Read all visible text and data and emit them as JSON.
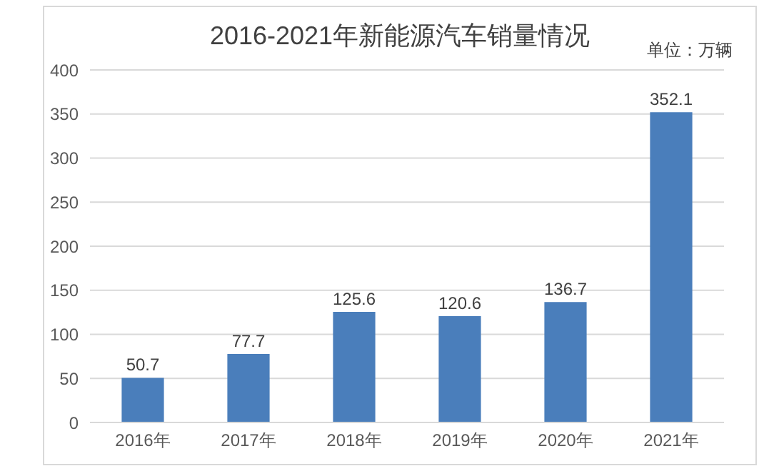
{
  "chart_data": {
    "type": "bar",
    "title": "2016-2021年新能源汽车销量情况",
    "annotations": [
      "单位：万辆"
    ],
    "categories": [
      "2016年",
      "2017年",
      "2018年",
      "2019年",
      "2020年",
      "2021年"
    ],
    "values": [
      50.7,
      77.7,
      125.6,
      120.6,
      136.7,
      352.1
    ],
    "color": "#4a7ebb",
    "ylim": [
      0,
      400
    ],
    "yticks": [
      0,
      50,
      100,
      150,
      200,
      250,
      300,
      350,
      400
    ],
    "grid": "y",
    "data_labels": true
  }
}
